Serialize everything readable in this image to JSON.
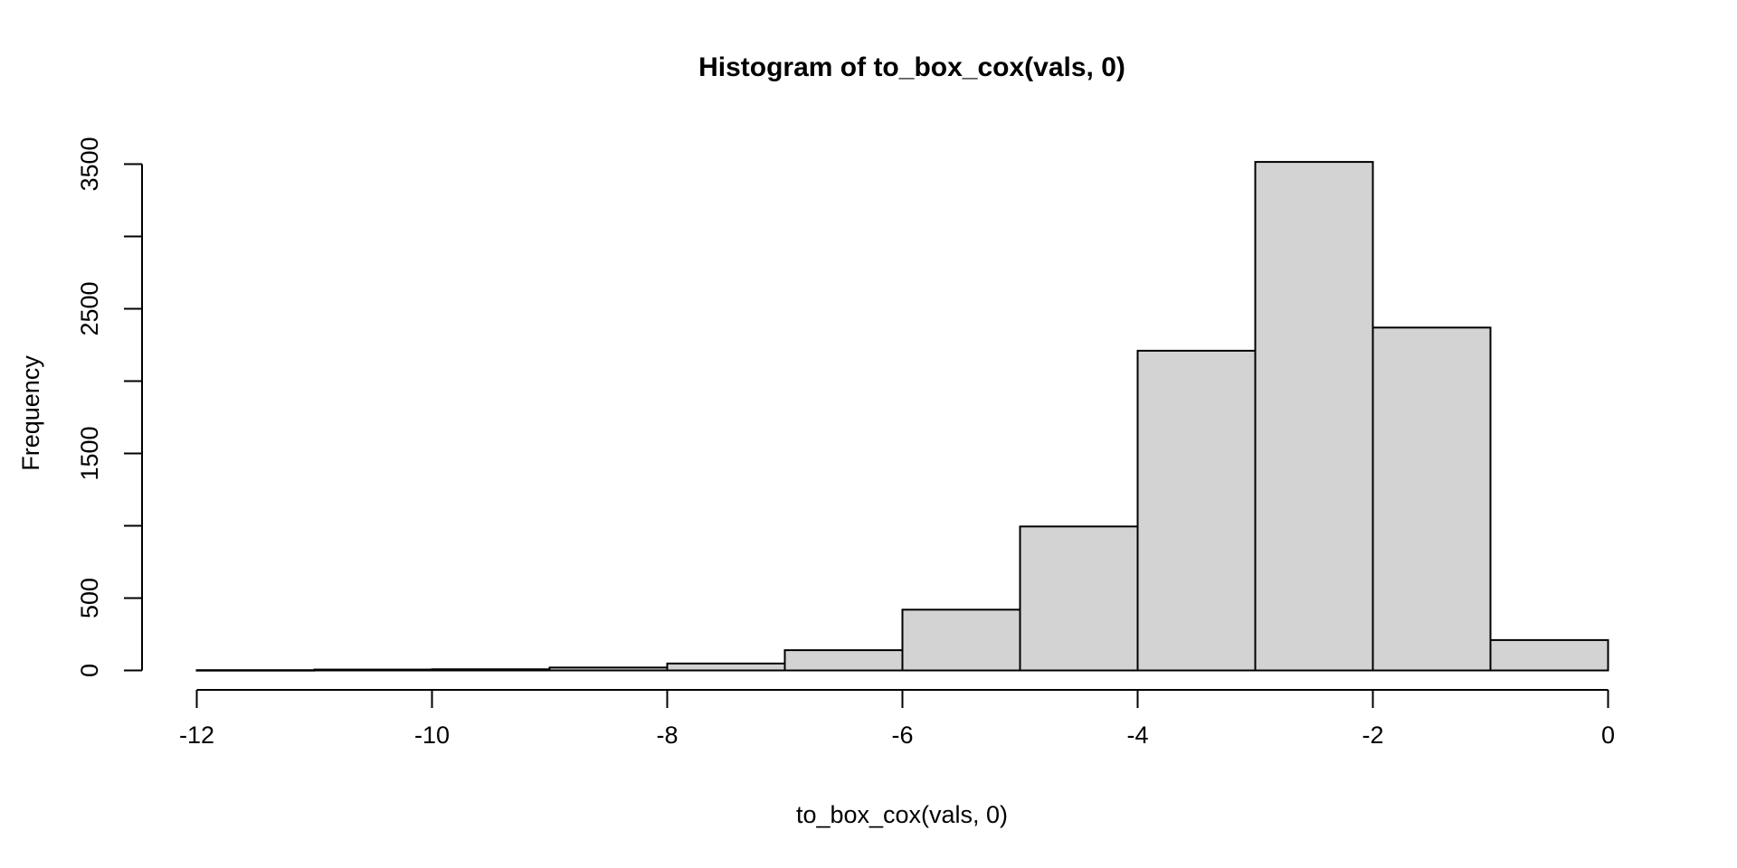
{
  "chart_data": {
    "type": "bar",
    "subtype": "histogram",
    "title": "Histogram of to_box_cox(vals, 0)",
    "xlabel": "to_box_cox(vals, 0)",
    "ylabel": "Frequency",
    "bin_edges": [
      -12,
      -11,
      -10,
      -9,
      -8,
      -7,
      -6,
      -5,
      -4,
      -3,
      -2,
      -1,
      0
    ],
    "counts": [
      2,
      6,
      8,
      20,
      48,
      140,
      420,
      995,
      2210,
      3515,
      2370,
      210
    ],
    "x_ticks": [
      -12,
      -10,
      -8,
      -6,
      -4,
      -2,
      0
    ],
    "x_tick_labels": [
      "-12",
      "-10",
      "-8",
      "-6",
      "-4",
      "-2",
      "0"
    ],
    "y_ticks": [
      0,
      500,
      1000,
      1500,
      2000,
      2500,
      3000,
      3500
    ],
    "y_tick_labels": [
      "0",
      "500",
      "",
      "1500",
      "",
      "2500",
      "",
      "3500"
    ],
    "xlim": [
      -12,
      0
    ],
    "ylim": [
      0,
      3500
    ],
    "grid": false,
    "legend": null,
    "bar_fill": "#d3d3d3",
    "bar_border": "#000000",
    "background": "#ffffff",
    "text_color": "#000000"
  }
}
